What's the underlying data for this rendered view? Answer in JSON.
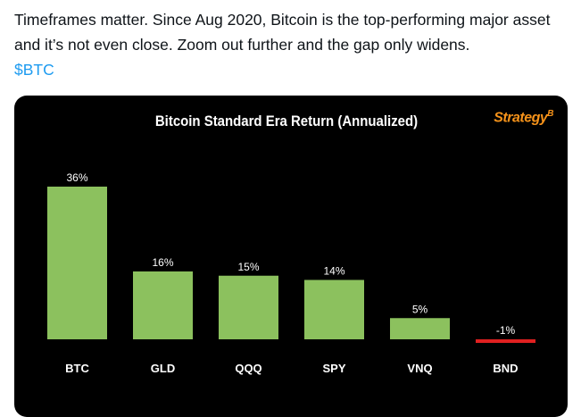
{
  "tweet": {
    "text": "Timeframes matter. Since Aug 2020, Bitcoin is the top-performing major asset and it’s not even close. Zoom out further and the gap only widens.",
    "cashtag": "$BTC"
  },
  "chart_data": {
    "type": "bar",
    "title": "Bitcoin Standard Era Return (Annualized)",
    "brand": "Strategy",
    "brand_mark": "B",
    "categories": [
      "BTC",
      "GLD",
      "QQQ",
      "SPY",
      "VNQ",
      "BND"
    ],
    "values": [
      36,
      16,
      15,
      14,
      5,
      -1
    ],
    "data_labels": [
      "36%",
      "16%",
      "15%",
      "14%",
      "5%",
      "-1%"
    ],
    "xlabel": "",
    "ylabel": "",
    "grid": false,
    "colors": {
      "positive": "#8cc15e",
      "negative": "#e02020",
      "background": "#000000",
      "brand": "#f7931a"
    }
  }
}
